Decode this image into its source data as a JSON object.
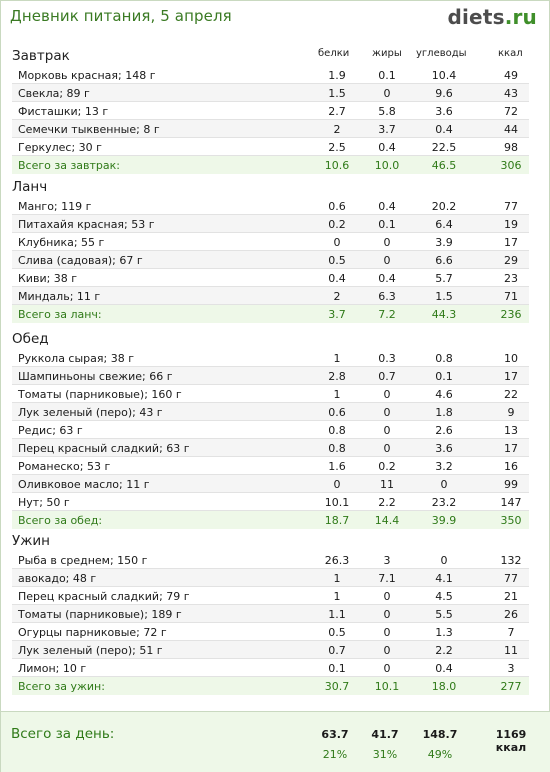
{
  "header": {
    "title": "Дневник питания, 5 апреля",
    "logo_main": "diets",
    "logo_tld": ".ru"
  },
  "columns": [
    "белки",
    "жиры",
    "углеводы",
    "ккал"
  ],
  "sections": [
    {
      "title": "Завтрак",
      "rows": [
        {
          "name": "Морковь красная; 148 г",
          "p": "1.9",
          "f": "0.1",
          "c": "10.4",
          "k": "49"
        },
        {
          "name": "Свекла; 89 г",
          "p": "1.5",
          "f": "0",
          "c": "9.6",
          "k": "43"
        },
        {
          "name": "Фисташки; 13 г",
          "p": "2.7",
          "f": "5.8",
          "c": "3.6",
          "k": "72"
        },
        {
          "name": "Семечки тыквенные; 8 г",
          "p": "2",
          "f": "3.7",
          "c": "0.4",
          "k": "44"
        },
        {
          "name": "Геркулес; 30 г",
          "p": "2.5",
          "f": "0.4",
          "c": "22.5",
          "k": "98"
        }
      ],
      "total": {
        "name": "Всего за завтрак:",
        "p": "10.6",
        "f": "10.0",
        "c": "46.5",
        "k": "306"
      }
    },
    {
      "title": "Ланч",
      "rows": [
        {
          "name": "Манго; 119 г",
          "p": "0.6",
          "f": "0.4",
          "c": "20.2",
          "k": "77"
        },
        {
          "name": "Питахайя красная; 53 г",
          "p": "0.2",
          "f": "0.1",
          "c": "6.4",
          "k": "19"
        },
        {
          "name": "Клубника; 55 г",
          "p": "0",
          "f": "0",
          "c": "3.9",
          "k": "17"
        },
        {
          "name": "Слива (садовая); 67 г",
          "p": "0.5",
          "f": "0",
          "c": "6.6",
          "k": "29"
        },
        {
          "name": "Киви; 38 г",
          "p": "0.4",
          "f": "0.4",
          "c": "5.7",
          "k": "23"
        },
        {
          "name": "Миндаль; 11 г",
          "p": "2",
          "f": "6.3",
          "c": "1.5",
          "k": "71"
        }
      ],
      "total": {
        "name": "Всего за ланч:",
        "p": "3.7",
        "f": "7.2",
        "c": "44.3",
        "k": "236"
      }
    },
    {
      "title": "Обед",
      "rows": [
        {
          "name": "Руккола сырая; 38 г",
          "p": "1",
          "f": "0.3",
          "c": "0.8",
          "k": "10"
        },
        {
          "name": "Шампиньоны свежие; 66 г",
          "p": "2.8",
          "f": "0.7",
          "c": "0.1",
          "k": "17"
        },
        {
          "name": "Томаты (парниковые); 160 г",
          "p": "1",
          "f": "0",
          "c": "4.6",
          "k": "22"
        },
        {
          "name": "Лук зеленый (перо); 43 г",
          "p": "0.6",
          "f": "0",
          "c": "1.8",
          "k": "9"
        },
        {
          "name": "Редис; 63 г",
          "p": "0.8",
          "f": "0",
          "c": "2.6",
          "k": "13"
        },
        {
          "name": "Перец красный сладкий; 63 г",
          "p": "0.8",
          "f": "0",
          "c": "3.6",
          "k": "17"
        },
        {
          "name": "Романеско; 53 г",
          "p": "1.6",
          "f": "0.2",
          "c": "3.2",
          "k": "16"
        },
        {
          "name": "Оливковое масло; 11 г",
          "p": "0",
          "f": "11",
          "c": "0",
          "k": "99"
        },
        {
          "name": "Нут; 50 г",
          "p": "10.1",
          "f": "2.2",
          "c": "23.2",
          "k": "147"
        }
      ],
      "total": {
        "name": "Всего за обед:",
        "p": "18.7",
        "f": "14.4",
        "c": "39.9",
        "k": "350"
      }
    },
    {
      "title": "Ужин",
      "rows": [
        {
          "name": "Рыба в среднем; 150 г",
          "p": "26.3",
          "f": "3",
          "c": "0",
          "k": "132"
        },
        {
          "name": "авокадо; 48 г",
          "p": "1",
          "f": "7.1",
          "c": "4.1",
          "k": "77"
        },
        {
          "name": "Перец красный сладкий; 79 г",
          "p": "1",
          "f": "0",
          "c": "4.5",
          "k": "21"
        },
        {
          "name": "Томаты (парниковые); 189 г",
          "p": "1.1",
          "f": "0",
          "c": "5.5",
          "k": "26"
        },
        {
          "name": "Огурцы парниковые; 72 г",
          "p": "0.5",
          "f": "0",
          "c": "1.3",
          "k": "7"
        },
        {
          "name": "Лук зеленый (перо); 51 г",
          "p": "0.7",
          "f": "0",
          "c": "2.2",
          "k": "11"
        },
        {
          "name": "Лимон; 10 г",
          "p": "0.1",
          "f": "0",
          "c": "0.4",
          "k": "3"
        }
      ],
      "total": {
        "name": "Всего за ужин:",
        "p": "30.7",
        "f": "10.1",
        "c": "18.0",
        "k": "277"
      }
    }
  ],
  "day_total": {
    "label": "Всего за день:",
    "p": "63.7",
    "f": "41.7",
    "c": "148.7",
    "k": "1169 ккал",
    "p_pct": "21%",
    "f_pct": "31%",
    "c_pct": "49%"
  },
  "colors": {
    "accent": "#2f7a18",
    "total_bg": "#eef8e8"
  }
}
